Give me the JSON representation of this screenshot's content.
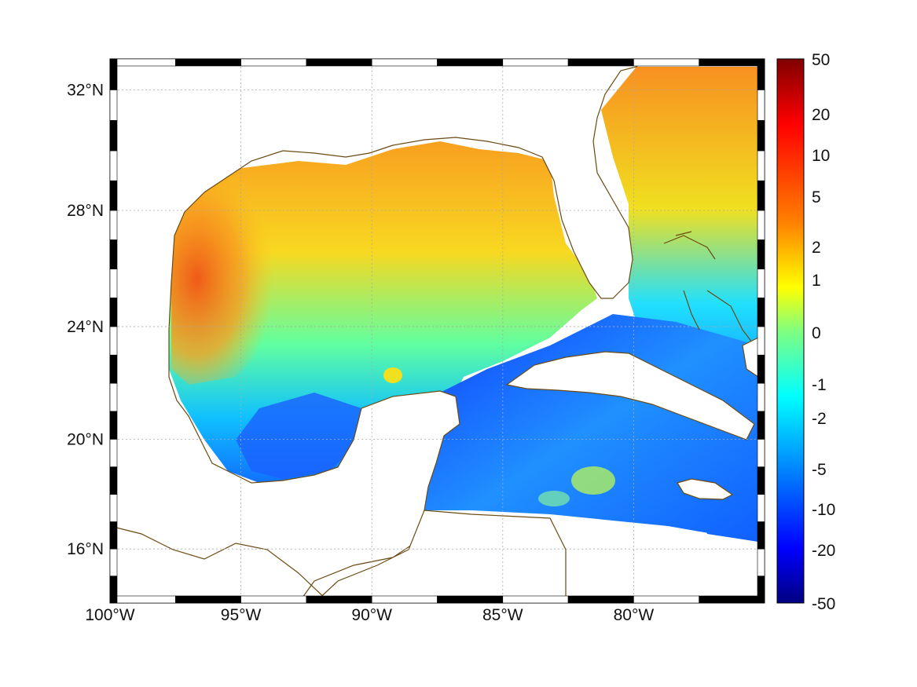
{
  "map": {
    "projection": "mercator",
    "lon_range": [
      -100,
      -75
    ],
    "lat_range": [
      14,
      33
    ],
    "grid": true,
    "frame_style": "black-white-banded",
    "coastline_color": "#6b4a12",
    "land_color": "#ffffff",
    "lon_ticks": [
      {
        "value": -100,
        "label": "100°W"
      },
      {
        "value": -95,
        "label": "95°W"
      },
      {
        "value": -90,
        "label": "90°W"
      },
      {
        "value": -85,
        "label": "85°W"
      },
      {
        "value": -80,
        "label": "80°W"
      }
    ],
    "lat_ticks": [
      {
        "value": 16,
        "label": "16°N"
      },
      {
        "value": 20,
        "label": "20°N"
      },
      {
        "value": 24,
        "label": "24°N"
      },
      {
        "value": 28,
        "label": "28°N"
      },
      {
        "value": 32,
        "label": "32°N"
      }
    ]
  },
  "colorbar": {
    "colormap": "jet",
    "placement": "right",
    "tick_labels": [
      "50",
      "20",
      "10",
      "5",
      "2",
      "1",
      "0",
      "-1",
      "-2",
      "-5",
      "-10",
      "-20",
      "-50"
    ],
    "colors": [
      "#800000",
      "#ff0000",
      "#ff8000",
      "#ffff00",
      "#80ff80",
      "#00ffff",
      "#0080ff",
      "#0000ff",
      "#000080"
    ]
  },
  "field": {
    "description_levels": "higher values in the northern Gulf and Atlantic, lower values in the Caribbean",
    "warm_color": "#f07020",
    "mid_color": "#e8f020",
    "cool_color": "#20a0ff",
    "cold_color": "#1040ff"
  }
}
